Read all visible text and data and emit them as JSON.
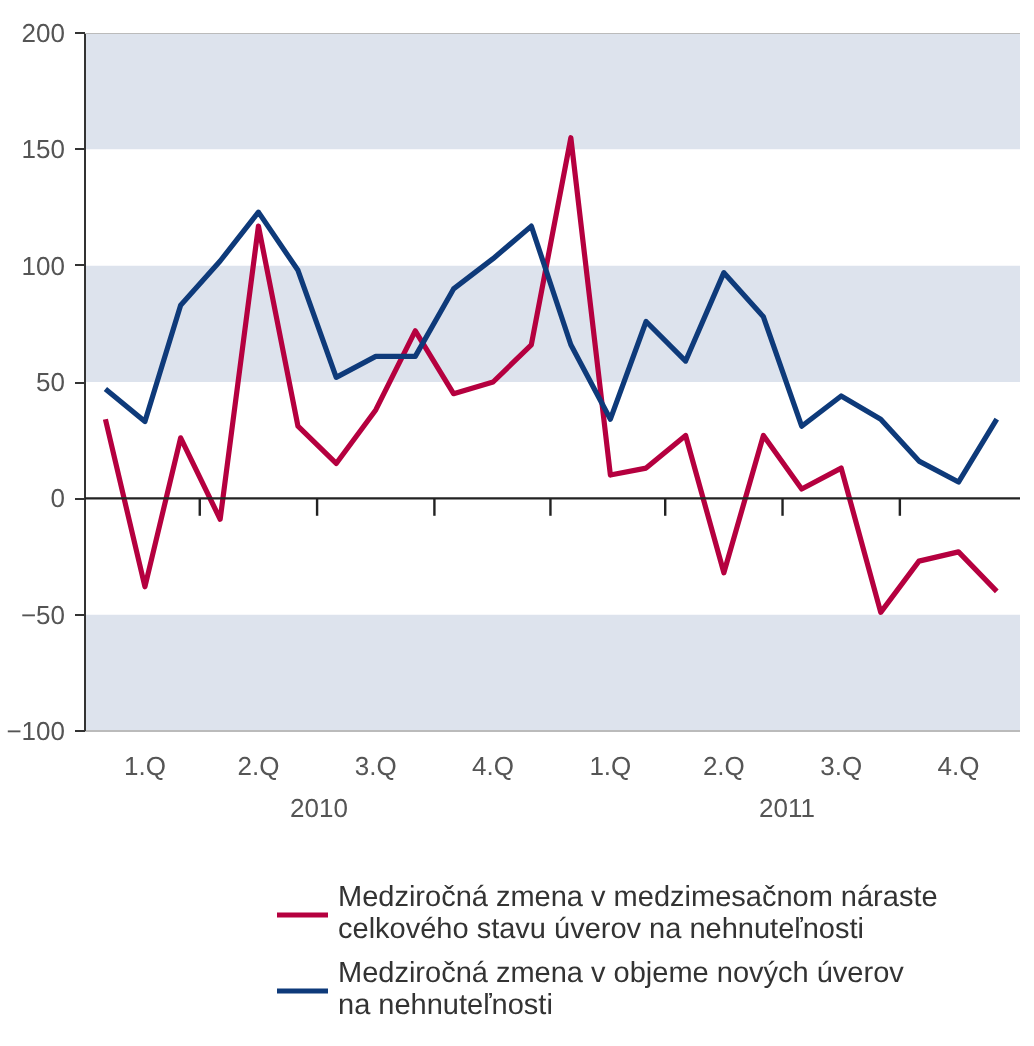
{
  "chart_data": {
    "type": "line",
    "x": [
      "2010-01",
      "2010-02",
      "2010-03",
      "2010-04",
      "2010-05",
      "2010-06",
      "2010-07",
      "2010-08",
      "2010-09",
      "2010-10",
      "2010-11",
      "2010-12",
      "2011-01",
      "2011-02",
      "2011-03",
      "2011-04",
      "2011-05",
      "2011-06",
      "2011-07",
      "2011-08",
      "2011-09",
      "2011-10",
      "2011-11",
      "2011-12"
    ],
    "series": [
      {
        "name": "Medziročná zmena v medzimesačnom náraste\ncelkového stavu úverov na nehnuteľnosti",
        "color": "#b5003f",
        "values": [
          34,
          -38,
          26,
          -9,
          117,
          31,
          15,
          38,
          72,
          45,
          50,
          66,
          155,
          10,
          13,
          27,
          -32,
          27,
          4,
          13,
          -49,
          -27,
          -23,
          -40
        ]
      },
      {
        "name": "Medziročná zmena v objeme nových úverov\nna nehnuteľnosti",
        "color": "#0e3a7a",
        "values": [
          47,
          33,
          83,
          102,
          123,
          98,
          52,
          61,
          61,
          90,
          103,
          117,
          66,
          34,
          76,
          59,
          97,
          78,
          31,
          44,
          34,
          16,
          7,
          34
        ]
      }
    ],
    "xlim": [
      "2009-12-16",
      "2011-12-20"
    ],
    "xticks": [
      {
        "value": "2010-02-01",
        "label": "1.Q"
      },
      {
        "value": "2010-03-16",
        "label": null
      },
      {
        "value": "2010-05-01",
        "label": "2.Q"
      },
      {
        "value": "2010-06-16",
        "label": null
      },
      {
        "value": "2010-08-01",
        "label": "3.Q"
      },
      {
        "value": "2010-09-16",
        "label": null
      },
      {
        "value": "2010-11-01",
        "label": "4.Q"
      },
      {
        "value": "2010-12-16",
        "label": null
      },
      {
        "value": "2011-02-01",
        "label": "1.Q"
      },
      {
        "value": "2011-03-16",
        "label": null
      },
      {
        "value": "2011-05-01",
        "label": "2.Q"
      },
      {
        "value": "2011-06-16",
        "label": null
      },
      {
        "value": "2011-08-01",
        "label": "3.Q"
      },
      {
        "value": "2011-09-16",
        "label": null
      },
      {
        "value": "2011-11-01",
        "label": "4.Q"
      }
    ],
    "ylim": [
      -100,
      200
    ],
    "yticks": [
      -100,
      -50,
      0,
      50,
      100,
      150,
      200
    ],
    "annotations": [
      "2010",
      "2011"
    ],
    "bands": [
      {
        "axis": "y",
        "from": 150,
        "to": 200,
        "color": "#dde3ed"
      },
      {
        "axis": "y",
        "from": 50,
        "to": 100,
        "color": "#dde3ed"
      },
      {
        "axis": "y",
        "from": -100,
        "to": -50,
        "color": "#dde3ed"
      }
    ],
    "ref_lines": [
      {
        "axis": "y",
        "value": 0,
        "color": "#222222"
      }
    ],
    "grid": false,
    "legend": "bottom",
    "marker": "none",
    "line_style": "solid"
  }
}
